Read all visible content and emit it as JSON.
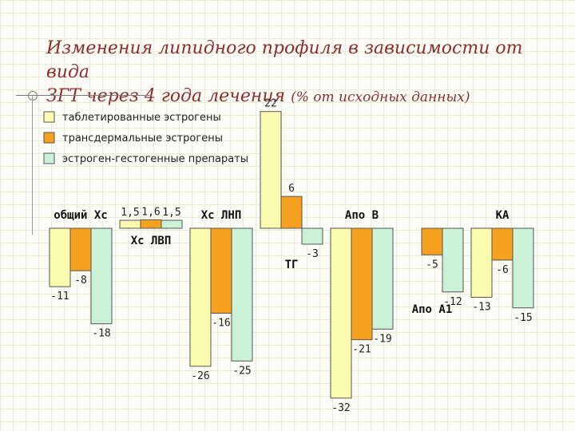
{
  "slide": {
    "title_line1": "Изменения липидного профиля в зависимости от вида",
    "title_line2_main": "ЗГТ через 4 года лечения",
    "title_line2_note": "(% от исходных данных)"
  },
  "chart_data": {
    "type": "bar",
    "title": "",
    "xlabel": "",
    "ylabel": "",
    "categories": [
      "общий Хс",
      "Хс ЛВП",
      "Хс ЛНП",
      "ТГ",
      "Апо В",
      "Апо А1",
      "КА"
    ],
    "series": [
      {
        "name": "таблетированные эстрогены",
        "color": "#fbfbb0",
        "values": [
          -11,
          1.5,
          -26,
          22,
          -32,
          null,
          -13
        ]
      },
      {
        "name": "трансдермальные эстрогены",
        "color": "#f5a01e",
        "values": [
          -8,
          1.6,
          -16,
          6,
          -21,
          -5,
          -6
        ]
      },
      {
        "name": "эстроген-гестогенные препараты",
        "color": "#cbf2d6",
        "values": [
          -18,
          1.5,
          -25,
          -3,
          -19,
          -12,
          -15
        ]
      }
    ],
    "data_labels": [
      [
        "-11",
        "1,5",
        "-26",
        "22",
        "-32",
        null,
        "-13"
      ],
      [
        "-8",
        "1,6",
        "-16",
        "6",
        "-21",
        "-5",
        "-6"
      ],
      [
        "-18",
        "1,5",
        "-25",
        "-3",
        "-19",
        "-12",
        "-15"
      ]
    ],
    "category_label_side": [
      "above",
      "below",
      "above",
      "below",
      "above",
      "below",
      "above"
    ],
    "ylim": [
      -33,
      23
    ],
    "grid": false,
    "legend_position": "top-left"
  }
}
